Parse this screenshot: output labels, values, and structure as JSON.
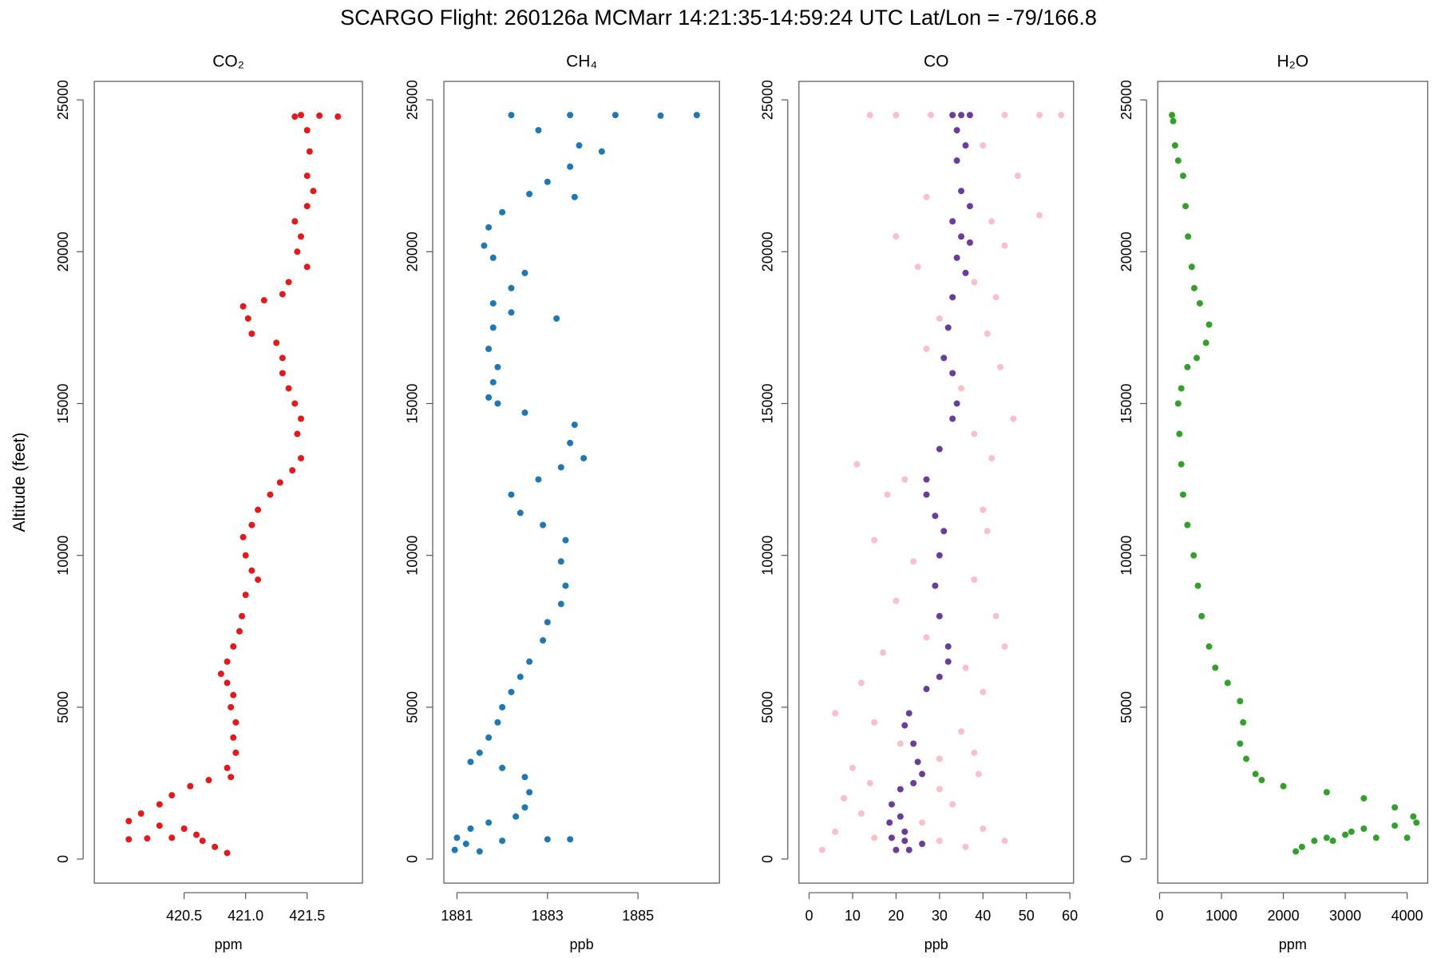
{
  "title": "SCARGO Flight: 260126a  MCMarr  14:21:35-14:59:24 UTC  Lat/Lon = -79/166.8",
  "chart_data": [
    {
      "type": "scatter",
      "title": "CO₂",
      "x_label": "ppm",
      "y_label": "Altitude (feet)",
      "xlim": [
        419.77,
        421.95
      ],
      "ylim": [
        -792,
        25609
      ],
      "xticks": [
        420.5,
        {
          "value": 421,
          "label": "421.0"
        },
        421.5
      ],
      "yticks": [
        0,
        5000,
        10000,
        15000,
        20000,
        25000
      ],
      "series": [
        {
          "color": "#e31a1c",
          "x": [
            421.45,
            421.6,
            421.75,
            421.4,
            421.5,
            421.52,
            421.5,
            421.55,
            421.5,
            421.4,
            421.45,
            421.42,
            421.5,
            421.35,
            421.3,
            421.15,
            420.98,
            421.02,
            421.05,
            421.25,
            421.3,
            421.3,
            421.35,
            421.4,
            421.45,
            421.42,
            421.45,
            421.38,
            421.28,
            421.2,
            421.1,
            421.05,
            420.98,
            421.0,
            421.05,
            421.1,
            421.0,
            420.97,
            420.95,
            420.9,
            420.85,
            420.8,
            420.85,
            420.9,
            420.88,
            420.92,
            420.9,
            420.92,
            420.85,
            420.88,
            420.7,
            420.55,
            420.4,
            420.3,
            420.15,
            420.05,
            420.3,
            420.5,
            420.6,
            420.4,
            420.2,
            420.05,
            420.65,
            420.75,
            420.85
          ],
          "y": [
            24500,
            24480,
            24450,
            24450,
            24000,
            23300,
            22500,
            22000,
            21500,
            21000,
            20500,
            20000,
            19500,
            19000,
            18600,
            18400,
            18200,
            17800,
            17300,
            17000,
            16500,
            16000,
            15500,
            15000,
            14500,
            14000,
            13200,
            12800,
            12400,
            12000,
            11500,
            11000,
            10600,
            10000,
            9500,
            9200,
            8700,
            8000,
            7500,
            7000,
            6500,
            6100,
            5800,
            5400,
            5000,
            4500,
            4000,
            3500,
            3000,
            2700,
            2600,
            2400,
            2100,
            1800,
            1500,
            1250,
            1100,
            1000,
            800,
            700,
            680,
            650,
            600,
            400,
            200
          ]
        }
      ]
    },
    {
      "type": "scatter",
      "title": "CH₄",
      "x_label": "ppb",
      "xlim": [
        1880.71,
        1886.8
      ],
      "ylim": [
        -792,
        25609
      ],
      "xticks": [
        1881,
        1883,
        1885
      ],
      "yticks": [
        0,
        5000,
        10000,
        15000,
        20000,
        25000
      ],
      "series": [
        {
          "color": "#1f78b4",
          "x": [
            1882.2,
            1883.5,
            1884.5,
            1885.5,
            1886.3,
            1882.8,
            1883.7,
            1884.2,
            1883.5,
            1883.0,
            1882.6,
            1883.6,
            1882.0,
            1881.7,
            1881.6,
            1881.8,
            1882.5,
            1882.2,
            1881.8,
            1882.2,
            1883.2,
            1881.8,
            1881.7,
            1881.9,
            1881.8,
            1881.7,
            1881.9,
            1882.5,
            1883.6,
            1883.5,
            1883.8,
            1883.3,
            1882.8,
            1882.2,
            1882.4,
            1882.9,
            1883.4,
            1883.3,
            1883.4,
            1883.3,
            1883.0,
            1882.9,
            1882.6,
            1882.4,
            1882.2,
            1882.0,
            1881.9,
            1881.7,
            1881.5,
            1881.3,
            1882.0,
            1882.5,
            1882.6,
            1882.5,
            1882.3,
            1881.7,
            1881.3,
            1881.0,
            1881.2,
            1882.0,
            1883.0,
            1883.5,
            1880.95,
            1881.5
          ],
          "y": [
            24500,
            24500,
            24500,
            24480,
            24500,
            24000,
            23500,
            23300,
            22800,
            22300,
            21900,
            21800,
            21300,
            20800,
            20200,
            19800,
            19300,
            18800,
            18300,
            18000,
            17800,
            17500,
            16800,
            16200,
            15700,
            15200,
            15000,
            14700,
            14300,
            13700,
            13200,
            12900,
            12500,
            12000,
            11400,
            11000,
            10500,
            9800,
            9000,
            8400,
            7800,
            7200,
            6500,
            6000,
            5500,
            5000,
            4500,
            4000,
            3500,
            3200,
            3000,
            2700,
            2200,
            1700,
            1400,
            1200,
            1000,
            700,
            500,
            600,
            650,
            650,
            300,
            250
          ]
        }
      ]
    },
    {
      "type": "scatter",
      "title": "CO",
      "x_label": "ppb",
      "xlim": [
        -2.34,
        60.85
      ],
      "ylim": [
        -792,
        25609
      ],
      "xticks": [
        0,
        10,
        20,
        30,
        40,
        50,
        60
      ],
      "yticks": [
        0,
        5000,
        10000,
        15000,
        20000,
        25000
      ],
      "series": [
        {
          "color": "#f9bfcb",
          "x": [
            14,
            20,
            28,
            45,
            53,
            58,
            40,
            48,
            27,
            42,
            53,
            20,
            45,
            25,
            38,
            43,
            30,
            41,
            27,
            44,
            35,
            47,
            38,
            11,
            42,
            22,
            18,
            40,
            15,
            41,
            24,
            38,
            20,
            43,
            27,
            45,
            17,
            36,
            12,
            40,
            6,
            15,
            35,
            21,
            38,
            30,
            10,
            39,
            14,
            30,
            8,
            33,
            12,
            26,
            6,
            40,
            15,
            30,
            45,
            3,
            36
          ],
          "y": [
            24500,
            24500,
            24500,
            24500,
            24500,
            24500,
            23500,
            22500,
            21800,
            21000,
            21200,
            20500,
            20200,
            19500,
            19000,
            18500,
            17800,
            17300,
            16800,
            16200,
            15500,
            14500,
            14000,
            13000,
            13200,
            12500,
            12000,
            11500,
            10500,
            10800,
            9800,
            9200,
            8500,
            8000,
            7300,
            7000,
            6800,
            6300,
            5800,
            5500,
            4800,
            4500,
            4200,
            3800,
            3500,
            3300,
            3000,
            2800,
            2500,
            2300,
            2000,
            1800,
            1500,
            1200,
            900,
            1000,
            700,
            600,
            600,
            300,
            400
          ]
        },
        {
          "color": "#6a3d9a",
          "x": [
            35,
            33,
            37,
            34,
            36,
            34,
            35,
            37,
            33,
            35,
            37,
            34,
            36,
            33,
            32,
            31,
            33,
            34,
            33,
            30,
            27,
            27,
            29,
            31,
            30,
            29,
            30,
            32,
            32,
            30,
            27,
            23,
            22,
            24,
            25,
            26,
            24,
            21,
            19,
            21,
            18.5,
            22,
            19,
            22,
            26,
            20,
            23
          ],
          "y": [
            24500,
            24500,
            24500,
            24000,
            23500,
            23000,
            22000,
            21500,
            21000,
            20500,
            20300,
            19800,
            19300,
            18500,
            17500,
            16500,
            16000,
            15000,
            14500,
            13500,
            12500,
            12000,
            11300,
            10800,
            10000,
            9000,
            8000,
            7000,
            6500,
            6000,
            5600,
            4800,
            4400,
            3800,
            3200,
            2800,
            2500,
            2300,
            1800,
            1400,
            1200,
            900,
            700,
            600,
            500,
            300,
            300
          ]
        }
      ]
    },
    {
      "type": "scatter",
      "title": "H₂O",
      "x_label": "ppm",
      "xlim": [
        -30,
        4333
      ],
      "ylim": [
        -792,
        25609
      ],
      "xticks": [
        0,
        1000,
        2000,
        3000,
        4000
      ],
      "yticks": [
        0,
        5000,
        10000,
        15000,
        20000,
        25000
      ],
      "series": [
        {
          "color": "#33a02c",
          "x": [
            200,
            220,
            250,
            300,
            380,
            420,
            460,
            520,
            560,
            650,
            800,
            750,
            600,
            450,
            350,
            300,
            320,
            350,
            380,
            450,
            550,
            620,
            680,
            800,
            900,
            1100,
            1300,
            1350,
            1300,
            1400,
            1550,
            1650,
            2000,
            2700,
            3300,
            3800,
            4100,
            4150,
            3800,
            3300,
            3100,
            3000,
            2700,
            2500,
            2300,
            2200,
            3500,
            4000,
            2800
          ],
          "y": [
            24500,
            24300,
            23500,
            23000,
            22500,
            21500,
            20500,
            19500,
            18800,
            18300,
            17600,
            17000,
            16500,
            16200,
            15500,
            15000,
            14000,
            13000,
            12000,
            11000,
            10000,
            9000,
            8000,
            7000,
            6300,
            5800,
            5200,
            4500,
            3800,
            3300,
            2800,
            2600,
            2400,
            2200,
            2000,
            1700,
            1400,
            1200,
            1100,
            1000,
            900,
            800,
            700,
            600,
            400,
            250,
            700,
            700,
            600
          ]
        }
      ]
    }
  ]
}
